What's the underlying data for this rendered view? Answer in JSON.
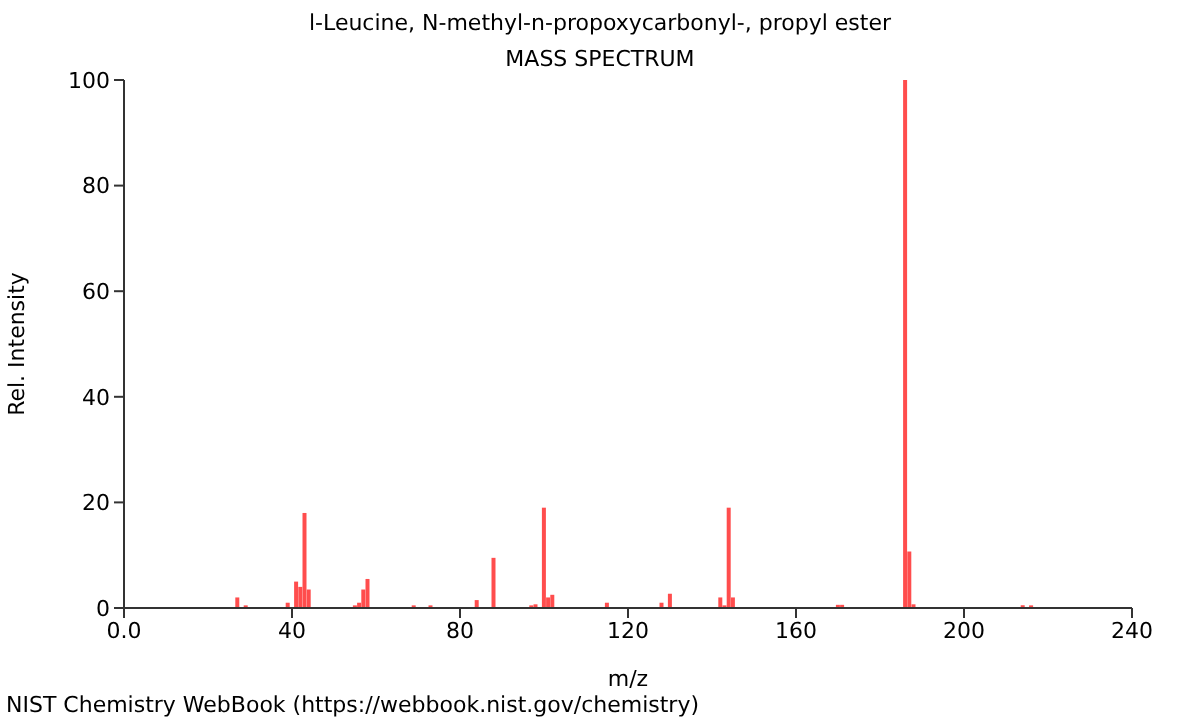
{
  "chart_data": {
    "type": "bar",
    "title": "l-Leucine, N-methyl-n-propoxycarbonyl-, propyl ester",
    "subtitle": "MASS SPECTRUM",
    "xlabel": "m/z",
    "ylabel": "Rel. Intensity",
    "annotations": [
      "NIST Chemistry WebBook (https://webbook.nist.gov/chemistry)"
    ],
    "x": [
      27,
      29,
      39,
      41,
      42,
      43,
      44,
      55,
      56,
      57,
      58,
      69,
      73,
      84,
      88,
      97,
      98,
      100,
      101,
      102,
      115,
      128,
      130,
      142,
      143,
      144,
      145,
      170,
      171,
      186,
      187,
      188,
      214,
      216
    ],
    "values": [
      2,
      0.5,
      1,
      5,
      4,
      18,
      3.5,
      0.5,
      1,
      3.5,
      5.5,
      0.5,
      0.5,
      1.5,
      9.5,
      0.5,
      0.7,
      19,
      2,
      2.5,
      1,
      1,
      2.7,
      2,
      0.5,
      19,
      2,
      0.6,
      0.6,
      100,
      10.7,
      0.7,
      0.5,
      0.5
    ],
    "color": "#ff4d4d",
    "xlim": [
      0,
      240
    ],
    "xticks": [
      {
        "value": 0,
        "label": "0.0"
      },
      40,
      80,
      120,
      160,
      200,
      240
    ],
    "ylim": [
      0,
      100
    ],
    "yticks": [
      0,
      20,
      40,
      60,
      80,
      100
    ],
    "grid": false,
    "legend": false
  }
}
